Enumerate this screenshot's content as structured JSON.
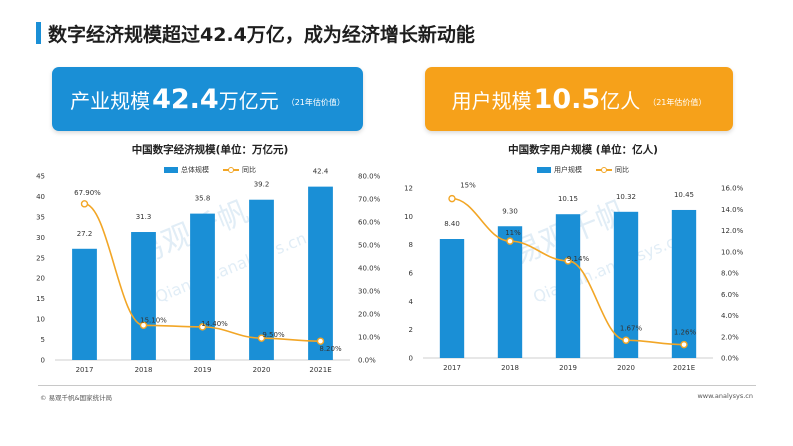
{
  "header": {
    "title": "数字经济规模超过42.4万亿，成为经济增长新动能"
  },
  "banners": {
    "left": {
      "label": "产业规模",
      "value": "42.4",
      "unit": "万亿元",
      "note": "（21年估价值）"
    },
    "right": {
      "label": "用户规模",
      "value": "10.5",
      "unit": "亿人",
      "note": "（21年估价值）"
    }
  },
  "watermark": {
    "text": "易观千帆",
    "site": "Qianfan.analysys.cn"
  },
  "footer": {
    "source": "© 易观千帆&国家统计局",
    "site": "www.analysys.cn"
  },
  "colors": {
    "bar": "#1a8fd6",
    "line": "#f2a626",
    "banner_left": "#1a8fd6",
    "banner_right": "#f6a11a"
  },
  "chart_data": [
    {
      "type": "bar",
      "title": "中国数字经济规模(单位：万亿元)",
      "categories": [
        "2017",
        "2018",
        "2019",
        "2020",
        "2021E"
      ],
      "series": [
        {
          "name": "总体规模",
          "kind": "bar",
          "axis": "left",
          "values": [
            27.2,
            31.3,
            35.8,
            39.2,
            42.4
          ],
          "labels": [
            "27.2",
            "31.3",
            "35.8",
            "39.2",
            "42.4"
          ]
        },
        {
          "name": "同比",
          "kind": "line",
          "axis": "right",
          "values": [
            67.9,
            15.1,
            14.4,
            9.5,
            8.2
          ],
          "labels": [
            "67.90%",
            "15.10%",
            "14.40%",
            "9.50%",
            "8.20%"
          ]
        }
      ],
      "ylim_left": [
        0,
        45
      ],
      "yticks_left": [
        "0",
        "5",
        "10",
        "15",
        "20",
        "25",
        "30",
        "35",
        "40",
        "45"
      ],
      "ylim_right": [
        0,
        80
      ],
      "yticks_right": [
        "0.0%",
        "10.0%",
        "20.0%",
        "30.0%",
        "40.0%",
        "50.0%",
        "60.0%",
        "70.0%",
        "80.0%"
      ],
      "legend": "top-center",
      "grid": false
    },
    {
      "type": "bar",
      "title": "中国数字用户规模 (单位：亿人)",
      "categories": [
        "2017",
        "2018",
        "2019",
        "2020",
        "2021E"
      ],
      "series": [
        {
          "name": "用户规模",
          "kind": "bar",
          "axis": "left",
          "values": [
            8.4,
            9.3,
            10.15,
            10.32,
            10.45
          ],
          "labels": [
            "8.40",
            "9.30",
            "10.15",
            "10.32",
            "10.45"
          ]
        },
        {
          "name": "同比",
          "kind": "line",
          "axis": "right",
          "values": [
            15,
            11,
            9.14,
            1.67,
            1.26
          ],
          "labels": [
            "15%",
            "11%",
            "9.14%",
            "1.67%",
            "1.26%"
          ]
        }
      ],
      "ylim_left": [
        0,
        12
      ],
      "yticks_left": [
        "0",
        "2",
        "4",
        "6",
        "8",
        "10",
        "12"
      ],
      "ylim_right": [
        0,
        16
      ],
      "yticks_right": [
        "0.0%",
        "2.0%",
        "4.0%",
        "6.0%",
        "8.0%",
        "10.0%",
        "12.0%",
        "14.0%",
        "16.0%"
      ],
      "legend": "top-center",
      "grid": false
    }
  ]
}
